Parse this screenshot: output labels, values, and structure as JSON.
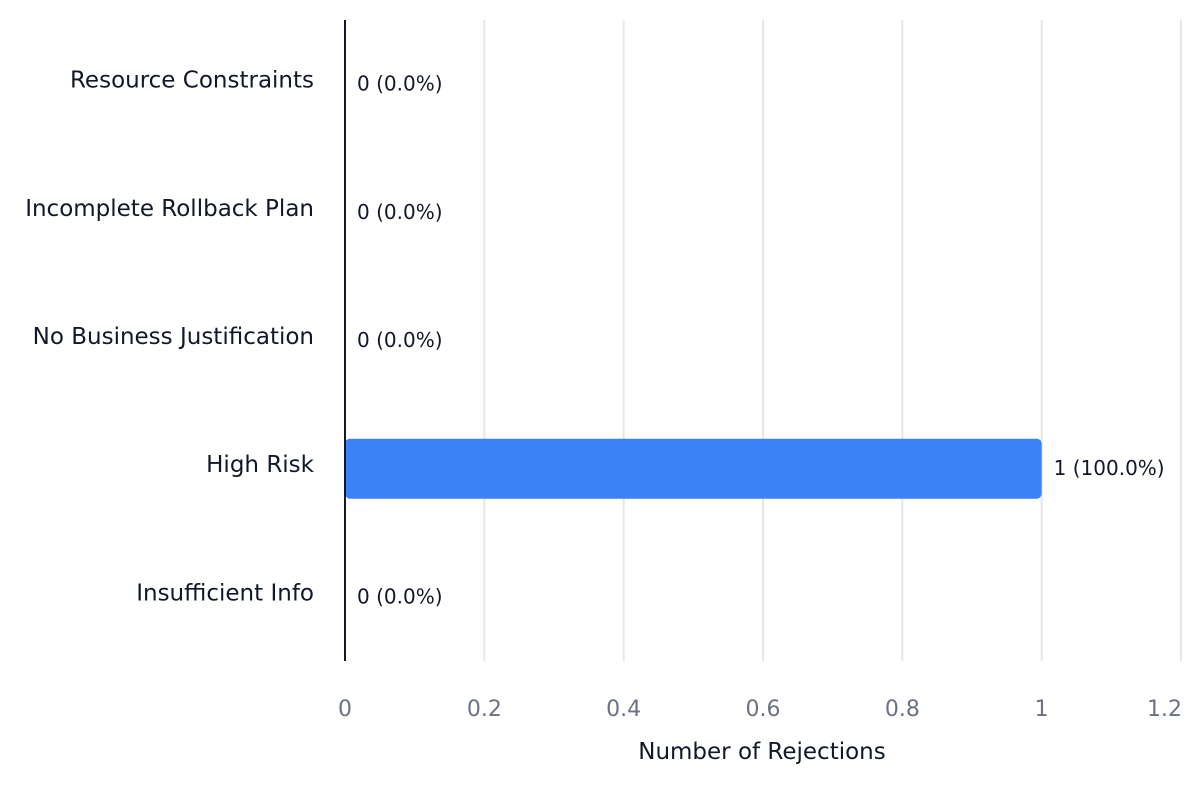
{
  "chart_data": {
    "type": "bar",
    "orientation": "horizontal",
    "categories": [
      "Resource Constraints",
      "Incomplete Rollback Plan",
      "No Business Justification",
      "High Risk",
      "Insufficient Info"
    ],
    "values": [
      0,
      0,
      0,
      1,
      0
    ],
    "data_labels": [
      "0 (0.0%)",
      "0 (0.0%)",
      "0 (0.0%)",
      "1 (100.0%)",
      "0 (0.0%)"
    ],
    "xlabel": "Number of Rejections",
    "ylabel": "",
    "xlim": [
      0,
      1.2
    ],
    "x_ticks": [
      0,
      0.2,
      0.4,
      0.6,
      0.8,
      1,
      1.2
    ],
    "x_tick_labels": [
      "0",
      "0.2",
      "0.4",
      "0.6",
      "0.8",
      "1",
      "1.2"
    ],
    "grid": "vertical",
    "legend": "none",
    "bar_color": "#3b82f6"
  }
}
